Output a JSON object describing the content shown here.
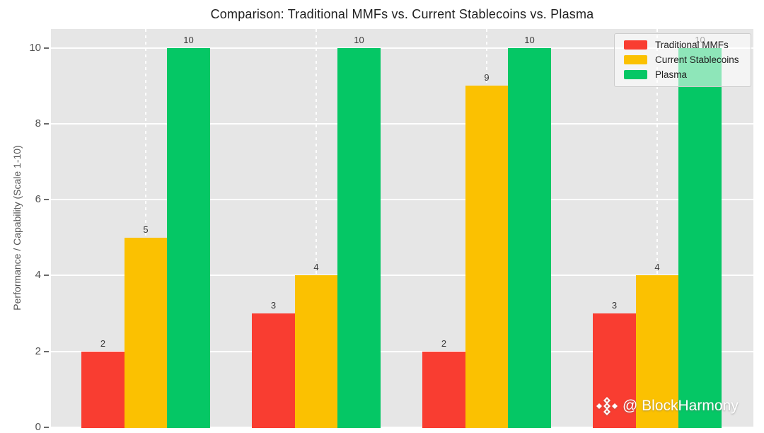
{
  "chart_data": {
    "type": "bar",
    "title": "Comparison: Traditional MMFs vs. Current Stablecoins vs. Plasma",
    "xlabel": "",
    "ylabel": "Performance / Capability (Scale 1-10)",
    "categories": [
      "",
      "",
      "",
      ""
    ],
    "series": [
      {
        "name": "Traditional MMFs",
        "color": "#F93D31",
        "values": [
          2,
          3,
          2,
          3
        ]
      },
      {
        "name": "Current Stablecoins",
        "color": "#FBC101",
        "values": [
          5,
          4,
          9,
          4
        ]
      },
      {
        "name": "Plasma",
        "color": "#05C765",
        "values": [
          10,
          10,
          10,
          10
        ]
      }
    ],
    "ylim": [
      0,
      10
    ],
    "yticks": [
      0,
      2,
      4,
      6,
      8,
      10
    ],
    "grid": true,
    "legend_position": "top-right",
    "plot_background": "#E6E6E6",
    "gridline_color": "#FFFFFF",
    "bar_value_labels": true
  },
  "watermark": {
    "icon": "binance-diamond-icon",
    "text": "@ BlockHarmony"
  }
}
